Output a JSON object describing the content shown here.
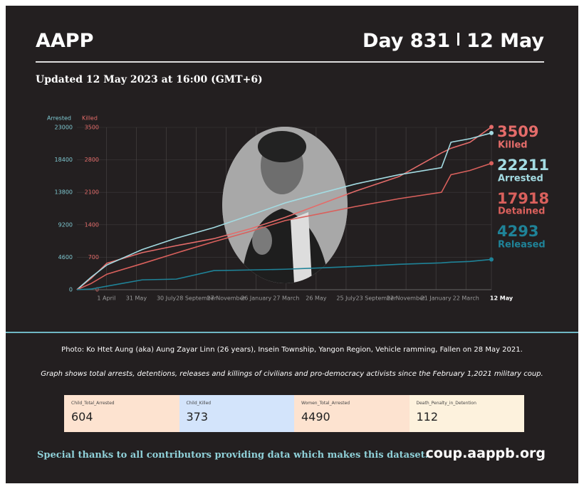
{
  "header": {
    "title": "AAPP",
    "day": "Day 831",
    "date": "12 May",
    "updated": "Updated 12 May 2023 at 16:00 (GMT+6)"
  },
  "chart_data": {
    "type": "line",
    "ylabel": "Arrested",
    "y2label": "Killed",
    "xlim": [
      1,
      831
    ],
    "xticks": [
      {
        "value": 60,
        "label": "1 April"
      },
      {
        "value": 120,
        "label": "31 May"
      },
      {
        "value": 180,
        "label": "30 July"
      },
      {
        "value": 240,
        "label": "28 September"
      },
      {
        "value": 300,
        "label": "27 November"
      },
      {
        "value": 360,
        "label": "26 January"
      },
      {
        "value": 420,
        "label": "27 March"
      },
      {
        "value": 480,
        "label": "26 May"
      },
      {
        "value": 540,
        "label": "25 July"
      },
      {
        "value": 600,
        "label": "23 September"
      },
      {
        "value": 660,
        "label": "22 November"
      },
      {
        "value": 720,
        "label": "21 January"
      },
      {
        "value": 780,
        "label": "22 March"
      },
      {
        "value": 831,
        "label": "12 May"
      }
    ],
    "ylim": [
      0,
      23000
    ],
    "yticks": [
      0,
      4600,
      9200,
      13800,
      18400,
      23000
    ],
    "y2lim": [
      0,
      3500
    ],
    "y2ticks": [
      0,
      700,
      1400,
      2100,
      2800,
      3500
    ],
    "grid": true,
    "x": [
      1,
      30,
      61,
      132,
      200,
      275,
      350,
      418,
      490,
      560,
      646,
      731,
      750,
      788,
      831
    ],
    "series": [
      {
        "name": "Killed",
        "color": "#e46c6a",
        "axis": "y2",
        "values": [
          0,
          250,
          570,
          800,
          950,
          1100,
          1320,
          1560,
          1850,
          2130,
          2440,
          2950,
          3050,
          3180,
          3509
        ]
      },
      {
        "name": "Arrested",
        "color": "#a3dbe2",
        "values": [
          0,
          1800,
          3500,
          5700,
          7300,
          8800,
          10600,
          12300,
          13700,
          15000,
          16300,
          17300,
          20900,
          21400,
          22211
        ]
      },
      {
        "name": "Detained",
        "color": "#d9605c",
        "values": [
          0,
          900,
          2200,
          3700,
          5200,
          6800,
          8300,
          9800,
          10800,
          11800,
          12900,
          13800,
          16300,
          16900,
          17918
        ]
      },
      {
        "name": "Released",
        "color": "#1f8398",
        "values": [
          0,
          100,
          500,
          1400,
          1500,
          2700,
          2800,
          2900,
          3100,
          3300,
          3600,
          3800,
          3900,
          4000,
          4293
        ]
      }
    ]
  },
  "caption": "Photo: Ko Htet Aung (aka) Aung Zayar Linn (26 years), Insein Township, Yangon Region, Vehicle ramming, Fallen on 28 May 2021.",
  "note": "Graph shows total arrests, detentions, releases and killings of civilians and pro-democracy activists since the February 1,2021 military coup.",
  "cards": [
    {
      "label": "Child_Total_Arrested",
      "value": 604
    },
    {
      "label": "Child_Killed",
      "value": 373
    },
    {
      "label": "Women_Total_Arrested",
      "value": 4490
    },
    {
      "label": "Death_Penalty_in_Detention",
      "value": 112
    }
  ],
  "footer": {
    "thanks": "Special thanks to all contributors providing data which makes this dataset.",
    "url": "coup.aappb.org"
  }
}
